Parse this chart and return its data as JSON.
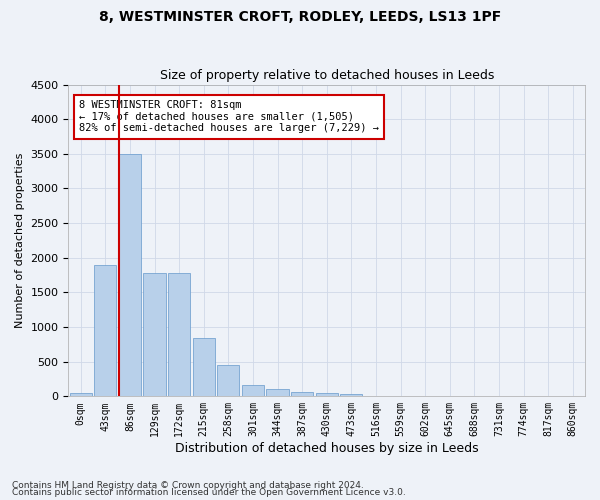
{
  "title": "8, WESTMINSTER CROFT, RODLEY, LEEDS, LS13 1PF",
  "subtitle": "Size of property relative to detached houses in Leeds",
  "xlabel": "Distribution of detached houses by size in Leeds",
  "ylabel": "Number of detached properties",
  "footer_line1": "Contains HM Land Registry data © Crown copyright and database right 2024.",
  "footer_line2": "Contains public sector information licensed under the Open Government Licence v3.0.",
  "categories": [
    "0sqm",
    "43sqm",
    "86sqm",
    "129sqm",
    "172sqm",
    "215sqm",
    "258sqm",
    "301sqm",
    "344sqm",
    "387sqm",
    "430sqm",
    "473sqm",
    "516sqm",
    "559sqm",
    "602sqm",
    "645sqm",
    "688sqm",
    "731sqm",
    "774sqm",
    "817sqm",
    "860sqm"
  ],
  "values": [
    50,
    1900,
    3500,
    1780,
    1780,
    840,
    450,
    160,
    100,
    65,
    50,
    40,
    0,
    0,
    0,
    0,
    0,
    0,
    0,
    0,
    0
  ],
  "bar_color": "#b8d0ea",
  "bar_edge_color": "#6699cc",
  "grid_color": "#d0d8e8",
  "vline_x": 2,
  "vline_color": "#cc0000",
  "annotation_text": "8 WESTMINSTER CROFT: 81sqm\n← 17% of detached houses are smaller (1,505)\n82% of semi-detached houses are larger (7,229) →",
  "annotation_box_color": "#ffffff",
  "annotation_box_edgecolor": "#cc0000",
  "ylim": [
    0,
    4500
  ],
  "yticks": [
    0,
    500,
    1000,
    1500,
    2000,
    2500,
    3000,
    3500,
    4000,
    4500
  ],
  "background_color": "#eef2f8",
  "title_fontsize": 10,
  "subtitle_fontsize": 9
}
